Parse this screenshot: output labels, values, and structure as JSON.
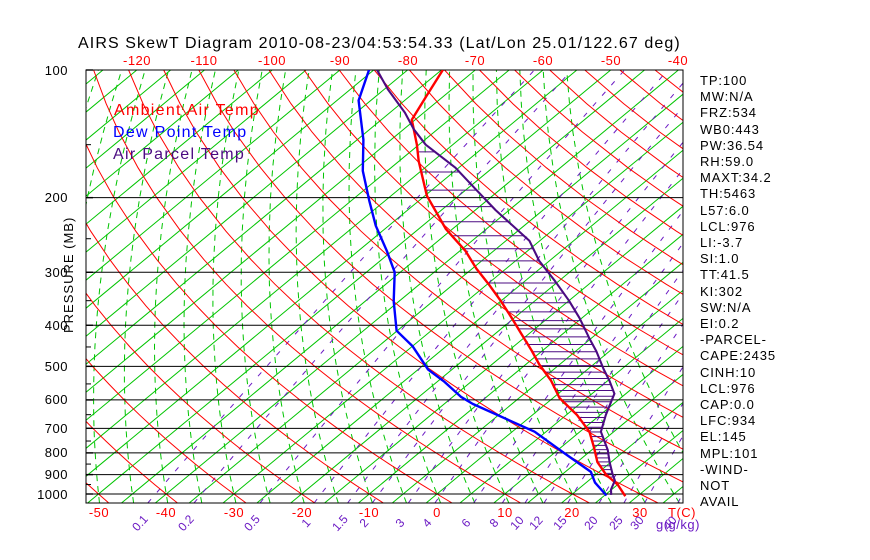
{
  "title": "AIRS SkewT Diagram 2010-08-23/04:53:54.33 (Lat/Lon 25.01/122.67 deg)",
  "colors": {
    "red": "#ff0000",
    "green": "#00c400",
    "blue": "#0000ff",
    "purple": "#4b0b82",
    "mixing_purple": "#6c1bc4",
    "black": "#000000"
  },
  "legend": [
    {
      "label": "Ambient Air Temp",
      "color_key": "red"
    },
    {
      "label": "Dew Point Temp",
      "color_key": "blue"
    },
    {
      "label": "Air Parcel Temp",
      "color_key": "purple"
    }
  ],
  "axes": {
    "pressure_label": "PRESSURE (MB)",
    "temp_unit_label": "T(C)",
    "mixing_unit_label": "g(g/kg)"
  },
  "stats_panel": {
    "lines": [
      "TP:100",
      "MW:N/A",
      "FRZ:534",
      "WB0:443",
      "PW:36.54",
      "RH:59.0",
      "MAXT:34.2",
      "TH:5463",
      "L57:6.0",
      "LCL:976",
      "LI:-3.7",
      "SI:1.0",
      "TT:41.5",
      "KI:302",
      "SW:N/A",
      "EI:0.2",
      "-PARCEL-",
      "CAPE:2435",
      "CINH:10",
      "LCL:976",
      "CAP:0.0",
      "LFC:934",
      "EL:145",
      "MPL:101",
      "-WIND-",
      "NOT",
      "AVAIL"
    ]
  },
  "chart_data": {
    "type": "line",
    "subtype": "skewt-log-p-sounding",
    "pressure_axis": {
      "unit": "MB",
      "major_ticks": [
        100,
        200,
        300,
        400,
        500,
        600,
        700,
        800,
        900,
        1000
      ],
      "minor_ticks": [
        150,
        250,
        350,
        450,
        550,
        650,
        750,
        850,
        950
      ],
      "range": [
        100,
        1050
      ]
    },
    "temp_axis": {
      "unit": "C",
      "top_labels": [
        -120,
        -110,
        -100,
        -90,
        -80,
        -70,
        -60,
        -50,
        -40
      ],
      "bottom_labels": [
        -50,
        -40,
        -30,
        -20,
        -10,
        0,
        10,
        20,
        30
      ]
    },
    "mixing_ratio_lines_g_per_kg": [
      0.1,
      0.2,
      0.5,
      1,
      1.5,
      2,
      3,
      4,
      6,
      8,
      10,
      12,
      15,
      20,
      25,
      30,
      40
    ],
    "isotherms_c": {
      "min": -130,
      "max": 35,
      "step": 5
    },
    "dry_adiabats_theta_c": {
      "min": -50,
      "max": 170,
      "step": 10
    },
    "moist_adiabats_thetaw_c": {
      "min": -60,
      "max": 40,
      "step": 5
    },
    "series": [
      {
        "name": "Ambient Air Temp",
        "color_key": "red",
        "points_p_t": [
          [
            1012,
            28.2
          ],
          [
            950,
            25.0
          ],
          [
            900,
            21.5
          ],
          [
            841,
            18.0
          ],
          [
            775,
            14.8
          ],
          [
            713,
            11.4
          ],
          [
            650,
            6.5
          ],
          [
            594,
            1.0
          ],
          [
            540,
            -3.4
          ],
          [
            495,
            -8.0
          ],
          [
            460,
            -11.5
          ],
          [
            420,
            -16.0
          ],
          [
            385,
            -20.3
          ],
          [
            350,
            -25.1
          ],
          [
            320,
            -29.8
          ],
          [
            294,
            -34.4
          ],
          [
            267,
            -39.2
          ],
          [
            237,
            -46.0
          ],
          [
            198,
            -54.7
          ],
          [
            164,
            -62.1
          ],
          [
            150,
            -65.3
          ],
          [
            131,
            -70.5
          ],
          [
            115,
            -72.6
          ],
          [
            100,
            -74.8
          ]
        ]
      },
      {
        "name": "Dew Point Temp",
        "color_key": "blue",
        "points_p_t": [
          [
            1008,
            25.3
          ],
          [
            940,
            21.3
          ],
          [
            887,
            18.8
          ],
          [
            802,
            11.6
          ],
          [
            713,
            3.3
          ],
          [
            613,
            -10.8
          ],
          [
            590,
            -13.8
          ],
          [
            543,
            -19.0
          ],
          [
            509,
            -23.5
          ],
          [
            448,
            -30.0
          ],
          [
            412,
            -35.1
          ],
          [
            351,
            -40.8
          ],
          [
            300,
            -45.8
          ],
          [
            267,
            -50.8
          ],
          [
            233,
            -56.9
          ],
          [
            203,
            -62.4
          ],
          [
            173,
            -68.6
          ],
          [
            146,
            -74.1
          ],
          [
            118,
            -81.8
          ],
          [
            100,
            -85.7
          ]
        ]
      },
      {
        "name": "Air Parcel Temp",
        "color_key": "purple",
        "points_p_t": [
          [
            1005,
            25.9
          ],
          [
            976,
            24.9
          ],
          [
            930,
            23.9
          ],
          [
            898,
            22.4
          ],
          [
            841,
            19.8
          ],
          [
            788,
            17.4
          ],
          [
            713,
            13.1
          ],
          [
            650,
            10.8
          ],
          [
            580,
            8.3
          ],
          [
            541,
            5.3
          ],
          [
            506,
            2.2
          ],
          [
            461,
            -1.9
          ],
          [
            430,
            -5.2
          ],
          [
            385,
            -10.3
          ],
          [
            350,
            -15.0
          ],
          [
            315,
            -20.5
          ],
          [
            282,
            -26.5
          ],
          [
            253,
            -31.5
          ],
          [
            214,
            -42.0
          ],
          [
            190,
            -49.0
          ],
          [
            170,
            -55.5
          ],
          [
            150,
            -64.0
          ],
          [
            138,
            -68.5
          ],
          [
            126,
            -72.8
          ],
          [
            111,
            -79.5
          ],
          [
            100,
            -84.5
          ]
        ]
      }
    ],
    "cape_hatch": {
      "p_top": 150,
      "p_bottom": 930,
      "step_mb": 18
    },
    "parcel_info": {
      "lcl_mb": 976,
      "lfc_mb": 934,
      "el_mb": 145,
      "cape": 2435
    }
  }
}
